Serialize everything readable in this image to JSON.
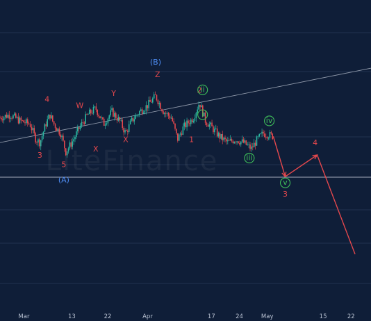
{
  "chart_data": {
    "type": "candlestick",
    "title": "",
    "xlabel": "",
    "ylabel": "",
    "grid": "horizontal",
    "colors": {
      "background": "#0f1e38",
      "grid": "#2a3a57",
      "up": "#2bb5a0",
      "down": "#e5484d",
      "label_red": "#e5484d",
      "label_blue": "#4f8ff7",
      "label_green": "#3fbf5a",
      "trendline": "#8d97a8",
      "projection": "#e5484d",
      "tick_text": "#b8c1d1"
    },
    "x_ticks": [
      {
        "label": "Mar",
        "day": 0
      },
      {
        "label": "13",
        "day": 12
      },
      {
        "label": "22",
        "day": 21
      },
      {
        "label": "Apr",
        "day": 31
      },
      {
        "label": "17",
        "day": 47
      },
      {
        "label": "24",
        "day": 54
      },
      {
        "label": "May",
        "day": 61
      },
      {
        "label": "15",
        "day": 75
      },
      {
        "label": "22",
        "day": 82
      }
    ],
    "x_range": [
      -6,
      87
    ],
    "y_range": [
      0,
      100
    ],
    "price_path": [
      [
        -6,
        62
      ],
      [
        -3.5,
        63
      ],
      [
        -1,
        61
      ],
      [
        1.5,
        60
      ],
      [
        3,
        55
      ],
      [
        4,
        54
      ],
      [
        5.5,
        60
      ],
      [
        6.5,
        63
      ],
      [
        7.5,
        60
      ],
      [
        9.2,
        57
      ],
      [
        10.5,
        51
      ],
      [
        12,
        54
      ],
      [
        14,
        59
      ],
      [
        16,
        63
      ],
      [
        18,
        65
      ],
      [
        20,
        60
      ],
      [
        22,
        64
      ],
      [
        24,
        61
      ],
      [
        25.5,
        57
      ],
      [
        27,
        61
      ],
      [
        29,
        64
      ],
      [
        31,
        66
      ],
      [
        33,
        69
      ],
      [
        35,
        64
      ],
      [
        37,
        62
      ],
      [
        38.5,
        55
      ],
      [
        40,
        59
      ],
      [
        42.5,
        62
      ],
      [
        44,
        67
      ],
      [
        45.5,
        61
      ],
      [
        47,
        59
      ],
      [
        49,
        56
      ],
      [
        51,
        54
      ],
      [
        53,
        55
      ],
      [
        55,
        54
      ],
      [
        57,
        52
      ],
      [
        58.5,
        55
      ],
      [
        60,
        57
      ],
      [
        62.5,
        56
      ]
    ],
    "wave_labels": [
      {
        "text": "4",
        "day": 5.8,
        "y": 68,
        "color": "red"
      },
      {
        "text": "3",
        "day": 4,
        "y": 50,
        "color": "red"
      },
      {
        "text": "5",
        "day": 10,
        "y": 47,
        "color": "red"
      },
      {
        "text": "(A)",
        "day": 10,
        "y": 42,
        "color": "blue"
      },
      {
        "text": "W",
        "day": 14,
        "y": 66,
        "color": "red"
      },
      {
        "text": "X",
        "day": 18,
        "y": 52,
        "color": "red"
      },
      {
        "text": "Y",
        "day": 22.5,
        "y": 70,
        "color": "red"
      },
      {
        "text": "X",
        "day": 25.5,
        "y": 55,
        "color": "red"
      },
      {
        "text": "(B)",
        "day": 33,
        "y": 80,
        "color": "blue"
      },
      {
        "text": "Z",
        "day": 33.5,
        "y": 76,
        "color": "red"
      },
      {
        "text": "1",
        "day": 42,
        "y": 55,
        "color": "red"
      },
      {
        "text": "2",
        "day": 44,
        "y": 71,
        "color": "red"
      }
    ],
    "circle_labels": [
      {
        "text": "ii",
        "day": 44.8,
        "y": 71
      },
      {
        "text": "i",
        "day": 44.8,
        "y": 63
      },
      {
        "text": "iii",
        "day": 56.5,
        "y": 49
      },
      {
        "text": "iv",
        "day": 61.5,
        "y": 61
      },
      {
        "text": "v",
        "day": 65.5,
        "y": 41
      }
    ],
    "projection": [
      [
        62.5,
        56
      ],
      [
        65.5,
        43
      ],
      [
        73.5,
        50
      ],
      [
        83,
        18
      ]
    ],
    "projection_labels": [
      {
        "text": "3",
        "day": 65.5,
        "y": 37.5
      },
      {
        "text": "4",
        "day": 73,
        "y": 54
      }
    ],
    "trendline": [
      [
        -6,
        54
      ],
      [
        87,
        78
      ]
    ]
  },
  "watermark": "LiteFinance"
}
